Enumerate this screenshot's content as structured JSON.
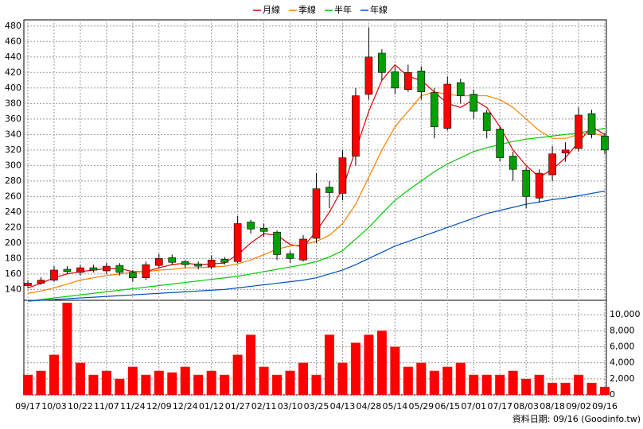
{
  "chart_data": [
    {
      "type": "candlestick",
      "categories": [
        "09/17",
        null,
        "10/03",
        null,
        "10/22",
        null,
        "11/07",
        null,
        "11/24",
        null,
        "12/09",
        null,
        "12/24",
        null,
        "01/12",
        null,
        "01/27",
        null,
        "02/11",
        null,
        "03/10",
        null,
        "03/25",
        null,
        "04/13",
        null,
        "04/28",
        null,
        "05/14",
        null,
        "05/29",
        null,
        "06/15",
        null,
        "07/01",
        null,
        "07/17",
        null,
        "08/03",
        null,
        "08/18",
        null,
        "09/02",
        null,
        "09/16"
      ],
      "open": [
        145,
        148,
        152,
        166,
        162,
        168,
        164,
        171,
        162,
        155,
        171,
        181,
        176,
        173,
        169,
        179,
        176,
        227,
        219,
        214,
        186,
        178,
        206,
        272,
        264,
        312,
        392,
        445,
        421,
        398,
        422,
        394,
        348,
        407,
        392,
        368,
        347,
        312,
        294,
        258,
        288,
        316,
        322,
        367,
        338
      ],
      "high": [
        152,
        156,
        170,
        170,
        172,
        172,
        174,
        174,
        165,
        176,
        186,
        185,
        178,
        176,
        184,
        182,
        235,
        230,
        225,
        216,
        190,
        210,
        290,
        280,
        320,
        400,
        478,
        450,
        428,
        430,
        428,
        400,
        415,
        412,
        398,
        372,
        350,
        318,
        298,
        295,
        325,
        330,
        375,
        372,
        342
      ],
      "low": [
        142,
        146,
        150,
        160,
        158,
        162,
        160,
        158,
        150,
        152,
        168,
        172,
        168,
        166,
        166,
        172,
        174,
        212,
        208,
        178,
        174,
        176,
        200,
        245,
        255,
        300,
        385,
        410,
        392,
        395,
        385,
        335,
        345,
        380,
        360,
        335,
        305,
        280,
        245,
        252,
        280,
        305,
        318,
        335,
        315
      ],
      "close": [
        148,
        152,
        165,
        163,
        168,
        165,
        170,
        162,
        155,
        172,
        180,
        175,
        172,
        170,
        178,
        175,
        225,
        218,
        215,
        185,
        180,
        205,
        270,
        265,
        310,
        390,
        440,
        420,
        400,
        420,
        395,
        350,
        405,
        390,
        370,
        345,
        310,
        295,
        260,
        290,
        315,
        320,
        365,
        340,
        320
      ],
      "up_color": "#ff0000",
      "down_color": "#00a000",
      "series": [
        {
          "name": "月線",
          "color": "#e00000",
          "values": [
            142,
            148,
            155,
            160,
            163,
            165,
            167,
            167,
            163,
            163,
            168,
            172,
            174,
            172,
            173,
            174,
            185,
            200,
            212,
            210,
            198,
            195,
            215,
            240,
            270,
            320,
            370,
            410,
            430,
            415,
            410,
            395,
            380,
            375,
            385,
            375,
            350,
            320,
            300,
            285,
            295,
            310,
            330,
            350,
            340
          ]
        },
        {
          "name": "季線",
          "color": "#ff7f00",
          "values": [
            135,
            138,
            142,
            147,
            152,
            155,
            158,
            160,
            162,
            163,
            165,
            166,
            168,
            168,
            169,
            170,
            173,
            178,
            185,
            192,
            196,
            198,
            202,
            210,
            225,
            250,
            285,
            320,
            350,
            370,
            390,
            395,
            392,
            390,
            390,
            390,
            385,
            375,
            360,
            345,
            335,
            335,
            340,
            342,
            338
          ]
        },
        {
          "name": "半年",
          "color": "#00cc00",
          "values": [
            125,
            127,
            129,
            131,
            133,
            135,
            137,
            139,
            141,
            143,
            145,
            147,
            149,
            151,
            153,
            155,
            157,
            160,
            163,
            166,
            169,
            172,
            176,
            182,
            190,
            205,
            220,
            238,
            255,
            268,
            280,
            292,
            302,
            310,
            318,
            323,
            327,
            331,
            334,
            336,
            338,
            340,
            342,
            345,
            348
          ]
        },
        {
          "name": "年線",
          "color": "#0050c0",
          "values": [
            125,
            126,
            127,
            128,
            129,
            130,
            131,
            132,
            133,
            134,
            135,
            136,
            137,
            138,
            139,
            140,
            142,
            144,
            146,
            148,
            150,
            152,
            155,
            160,
            165,
            172,
            180,
            188,
            196,
            202,
            208,
            214,
            220,
            226,
            232,
            238,
            242,
            246,
            250,
            253,
            256,
            258,
            261,
            264,
            267
          ]
        }
      ],
      "ylim": [
        126,
        488
      ],
      "yticks": [
        140,
        160,
        180,
        200,
        220,
        240,
        260,
        280,
        300,
        320,
        340,
        360,
        380,
        400,
        420,
        440,
        460,
        480
      ],
      "grid": true
    },
    {
      "type": "bar",
      "color": "#ff0000",
      "values": [
        2500,
        3000,
        5000,
        11500,
        4000,
        2500,
        3000,
        2000,
        3500,
        2500,
        3000,
        2800,
        3500,
        2500,
        3000,
        2500,
        5000,
        7500,
        3500,
        2500,
        3000,
        4000,
        2500,
        7500,
        4000,
        6500,
        7500,
        8000,
        6000,
        3500,
        4000,
        3000,
        3500,
        4000,
        2500,
        2500,
        2500,
        3000,
        2000,
        2500,
        1500,
        1500,
        2500,
        1500,
        1000
      ],
      "ylim": [
        0,
        11800
      ],
      "yticks": [
        0,
        {
          "value": 2000,
          "label": "2,000"
        },
        {
          "value": 4000,
          "label": "4,000"
        },
        {
          "value": 6000,
          "label": "6,000"
        },
        {
          "value": 8000,
          "label": "8,000"
        },
        {
          "value": 10000,
          "label": "10,000"
        }
      ],
      "grid": true
    }
  ],
  "footer": "資料日期: 09/16 (Goodinfo.tw)"
}
